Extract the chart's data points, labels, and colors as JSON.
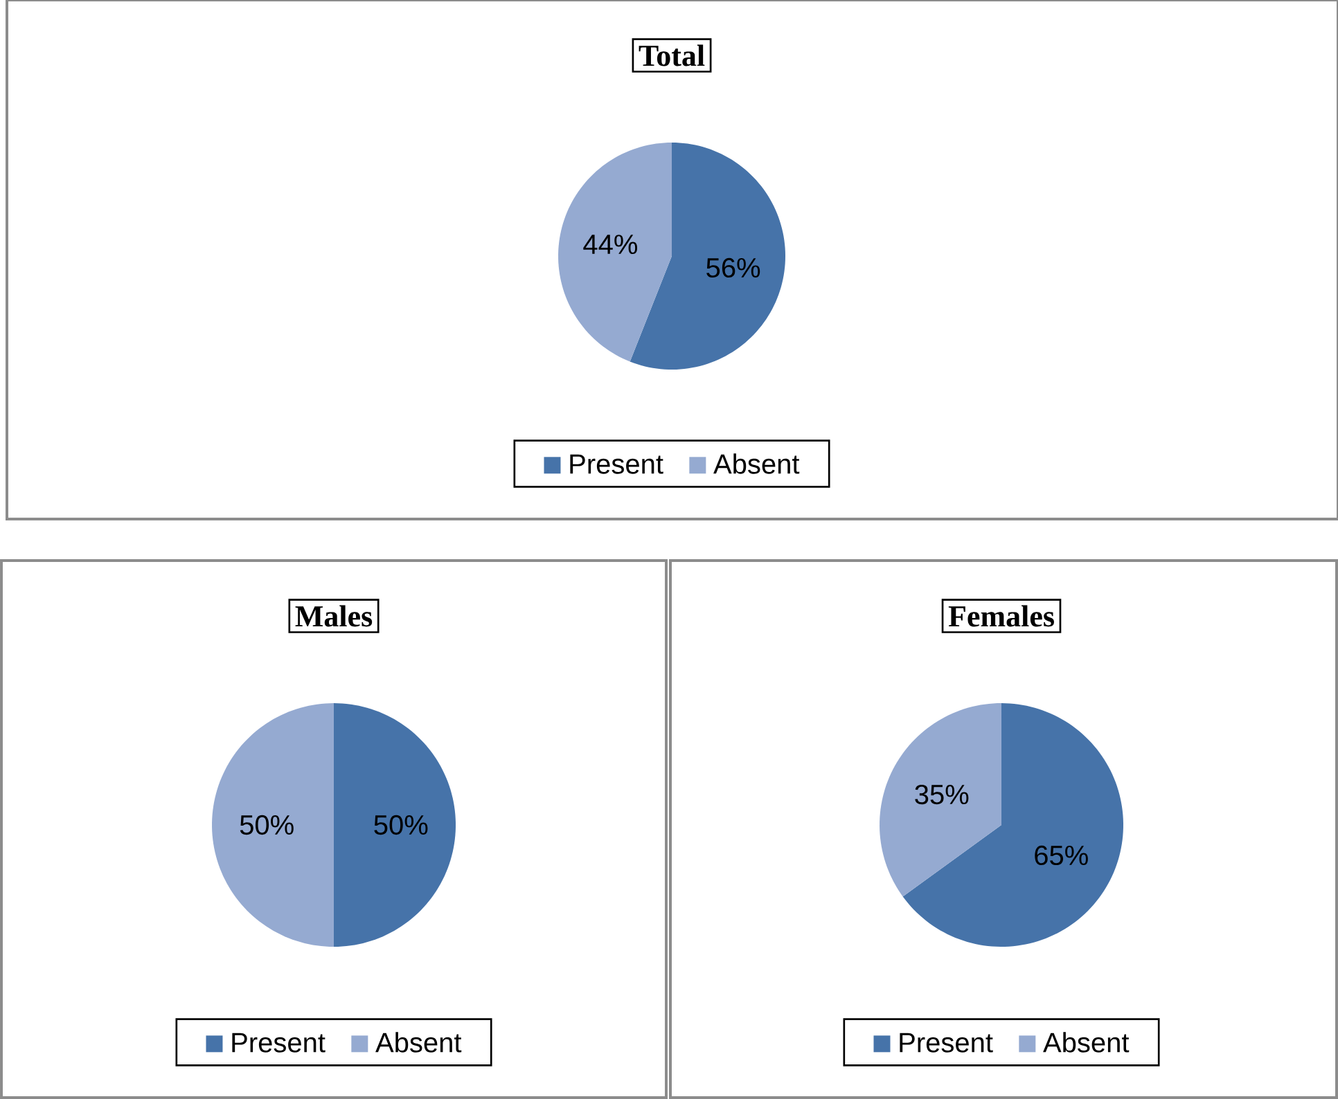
{
  "chart_data": [
    {
      "type": "pie",
      "title": "Total",
      "categories": [
        "Present",
        "Absent"
      ],
      "values": [
        56,
        44
      ],
      "value_labels": [
        "56%",
        "44%"
      ],
      "colors": [
        "#4673a9",
        "#95aad1"
      ],
      "legend": "bottom"
    },
    {
      "type": "pie",
      "title": "Males",
      "categories": [
        "Present",
        "Absent"
      ],
      "values": [
        50,
        50
      ],
      "value_labels": [
        "50%",
        "50%"
      ],
      "colors": [
        "#4673a9",
        "#95aad1"
      ],
      "legend": "bottom"
    },
    {
      "type": "pie",
      "title": "Females",
      "categories": [
        "Present",
        "Absent"
      ],
      "values": [
        65,
        35
      ],
      "value_labels": [
        "65%",
        "35%"
      ],
      "colors": [
        "#4673a9",
        "#95aad1"
      ],
      "legend": "bottom"
    }
  ]
}
